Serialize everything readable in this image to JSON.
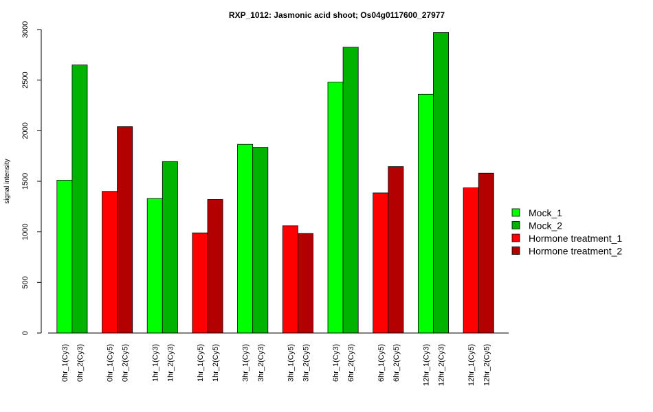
{
  "chart_data": {
    "type": "bar",
    "title": "RXP_1012: Jasmonic acid shoot; Os04g0117600_27977",
    "xlabel": "",
    "ylabel": "signal intensity",
    "ylim": [
      0,
      3000
    ],
    "yticks": [
      0,
      500,
      1000,
      1500,
      2000,
      2500,
      3000
    ],
    "legend_position": "right",
    "series": [
      {
        "name": "Mock_1",
        "color": "#00ff00"
      },
      {
        "name": "Mock_2",
        "color": "#00b300"
      },
      {
        "name": "Hormone treatment_1",
        "color": "#ff0000"
      },
      {
        "name": "Hormone treatment_2",
        "color": "#b30000"
      }
    ],
    "groups": [
      {
        "bars": [
          {
            "label": "0hr_1(Cy3)",
            "value": 1510,
            "series": 0
          },
          {
            "label": "0hr_2(Cy3)",
            "value": 2650,
            "series": 1
          }
        ]
      },
      {
        "bars": [
          {
            "label": "0hr_1(Cy5)",
            "value": 1400,
            "series": 2
          },
          {
            "label": "0hr_2(Cy5)",
            "value": 2040,
            "series": 3
          }
        ]
      },
      {
        "bars": [
          {
            "label": "1hr_1(Cy3)",
            "value": 1330,
            "series": 0
          },
          {
            "label": "1hr_2(Cy3)",
            "value": 1695,
            "series": 1
          }
        ]
      },
      {
        "bars": [
          {
            "label": "1hr_1(Cy5)",
            "value": 990,
            "series": 2
          },
          {
            "label": "1hr_2(Cy5)",
            "value": 1320,
            "series": 3
          }
        ]
      },
      {
        "bars": [
          {
            "label": "3hr_1(Cy3)",
            "value": 1865,
            "series": 0
          },
          {
            "label": "3hr_2(Cy3)",
            "value": 1835,
            "series": 1
          }
        ]
      },
      {
        "bars": [
          {
            "label": "3hr_1(Cy5)",
            "value": 1060,
            "series": 2
          },
          {
            "label": "3hr_2(Cy5)",
            "value": 985,
            "series": 3
          }
        ]
      },
      {
        "bars": [
          {
            "label": "6hr_1(Cy3)",
            "value": 2480,
            "series": 0
          },
          {
            "label": "6hr_2(Cy3)",
            "value": 2825,
            "series": 1
          }
        ]
      },
      {
        "bars": [
          {
            "label": "6hr_1(Cy5)",
            "value": 1385,
            "series": 2
          },
          {
            "label": "6hr_2(Cy5)",
            "value": 1645,
            "series": 3
          }
        ]
      },
      {
        "bars": [
          {
            "label": "12hr_1(Cy3)",
            "value": 2360,
            "series": 0
          },
          {
            "label": "12hr_2(Cy3)",
            "value": 2970,
            "series": 1
          }
        ]
      },
      {
        "bars": [
          {
            "label": "12hr_1(Cy5)",
            "value": 1435,
            "series": 2
          },
          {
            "label": "12hr_2(Cy5)",
            "value": 1580,
            "series": 3
          }
        ]
      }
    ]
  }
}
